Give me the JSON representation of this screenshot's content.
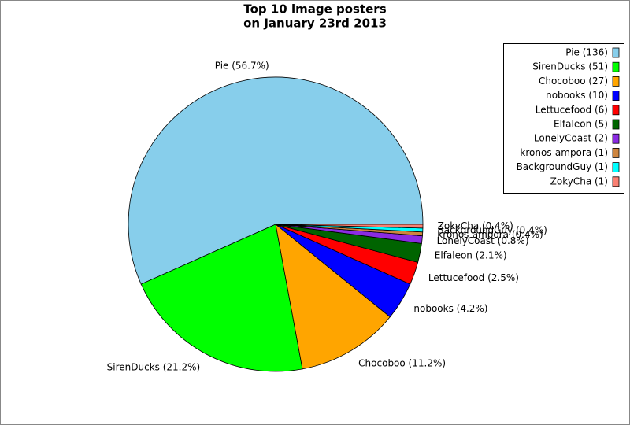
{
  "chart_data": {
    "type": "pie",
    "title": "Top 10 image posters",
    "subtitle": "on January 23rd 2013",
    "legend_labels": [
      "Pie (136)",
      "SirenDucks (51)",
      "Chocoboo (27)",
      "nobooks (10)",
      "Lettucefood (6)",
      "Elfaleon (5)",
      "LonelyCoast (2)",
      "kronos-ampora (1)",
      "BackgroundGuy (1)",
      "ZokyCha (1)"
    ],
    "values": [
      136,
      51,
      27,
      10,
      6,
      5,
      2,
      1,
      1,
      1
    ],
    "value_labels": [
      "Pie (56.7%)",
      "SirenDucks (21.2%)",
      "Chocoboo (11.2%)",
      "nobooks (4.2%)",
      "Lettucefood (2.5%)",
      "Elfaleon (2.1%)",
      "LonelyCoast (0.8%)",
      "kronos-ampora (0.4%)",
      "BackgroundGuy (0.4%)",
      "ZokyCha (0.4%)"
    ],
    "colors": [
      "#87ceeb",
      "#00ff00",
      "#ffa500",
      "#0000ff",
      "#ff0000",
      "#006400",
      "#8a2be2",
      "#cd853f",
      "#00ffff",
      "#fa8072"
    ],
    "legend": "upper right"
  }
}
